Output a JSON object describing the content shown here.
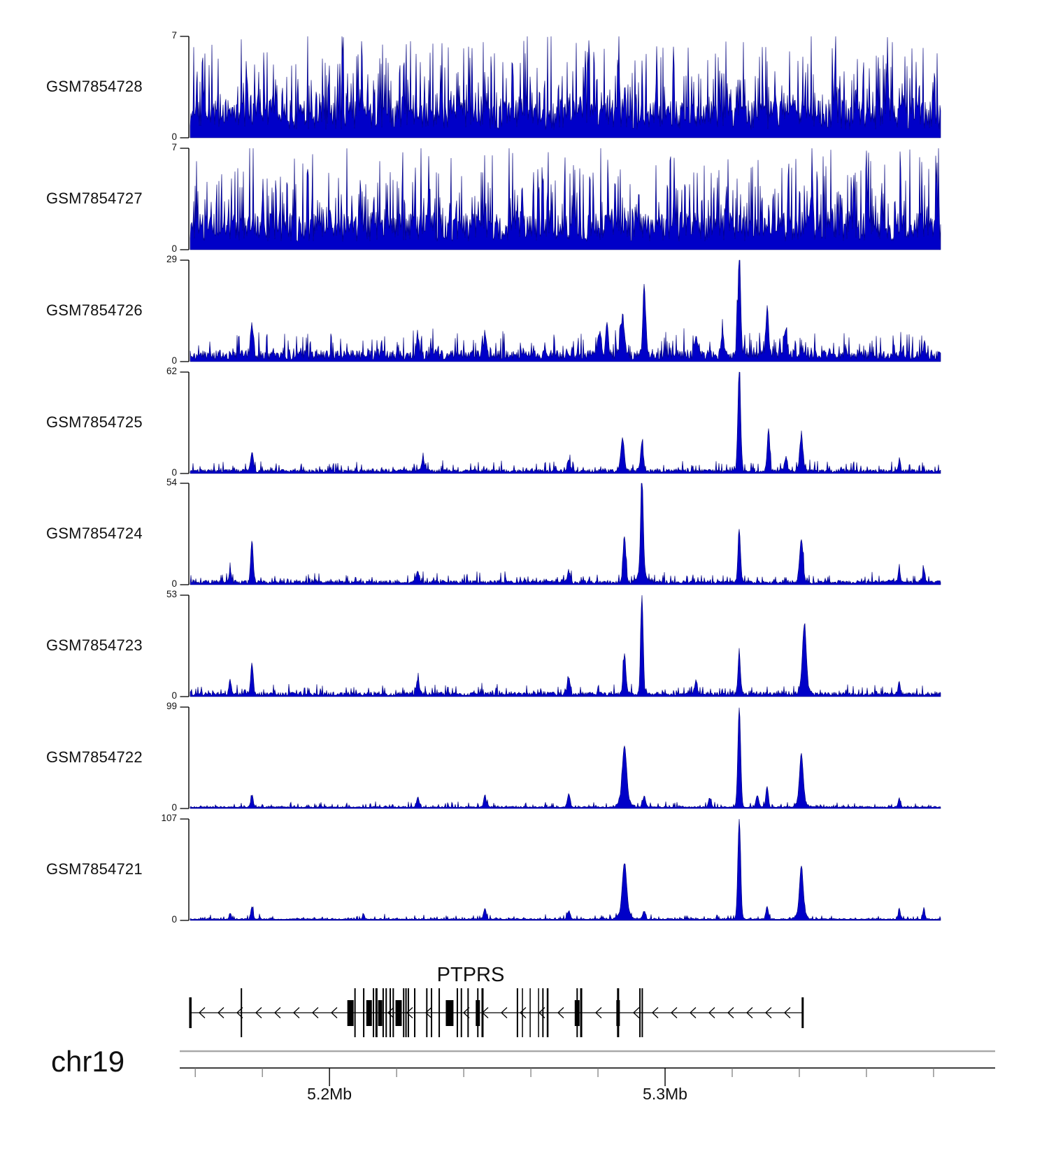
{
  "chart_data": {
    "type": "area",
    "subtype": "genome-browser-coverage-tracks",
    "description": "Eight ChIP-seq/coverage signal tracks (dark blue filled area, dense 1px spikes) over chr19 around the PTPRS gene locus. Peaks are given as [position_mb, height_in_track_units, sigma_px]; background noise is dense small-amplitude spiking synthesized from the noise parameters.",
    "colors": {
      "signal": "#0000C8",
      "signal_edge": "#00007A",
      "axis": "#000000",
      "gene": "#000000",
      "ruler_gray": "#A9A9A9",
      "tick_minor": "#777777",
      "text": "#111111"
    },
    "x_axis": {
      "chromosome": "chr19",
      "unit": "Mb",
      "start_mb": 5.1585,
      "end_mb": 5.3821,
      "minor_ticks_mb": [
        5.16,
        5.18,
        5.22,
        5.24,
        5.26,
        5.28,
        5.32,
        5.34,
        5.36,
        5.38
      ],
      "major_ticks": [
        {
          "mb": 5.2,
          "label": "5.2Mb"
        },
        {
          "mb": 5.3,
          "label": "5.3Mb"
        }
      ]
    },
    "tracks": [
      {
        "name": "GSM7854728",
        "ymax": 7,
        "ymin_label": "0",
        "noise": {
          "seed": 101,
          "base": 0.55,
          "band": 2.1,
          "spike_p": 0.52,
          "spike_amp": 5.2,
          "pow": 1.9
        },
        "peaks": []
      },
      {
        "name": "GSM7854727",
        "ymax": 7,
        "ymin_label": "0",
        "noise": {
          "seed": 202,
          "base": 0.55,
          "band": 2.0,
          "spike_p": 0.5,
          "spike_amp": 5.2,
          "pow": 1.9
        },
        "peaks": []
      },
      {
        "name": "GSM7854726",
        "ymax": 29,
        "ymin_label": "0",
        "noise": {
          "seed": 303,
          "base": 0.5,
          "band": 2.8,
          "spike_p": 0.35,
          "spike_amp": 6.5,
          "pow": 2.2
        },
        "peaks": [
          [
            5.1769,
            9,
            2
          ],
          [
            5.2263,
            6,
            2
          ],
          [
            5.2463,
            6,
            2
          ],
          [
            5.2804,
            7,
            2
          ],
          [
            5.2827,
            8,
            2
          ],
          [
            5.2873,
            11,
            3
          ],
          [
            5.2938,
            20,
            2
          ],
          [
            5.3092,
            6,
            2
          ],
          [
            5.3171,
            6,
            2
          ],
          [
            5.3221,
            28,
            2
          ],
          [
            5.3304,
            13,
            2
          ],
          [
            5.3358,
            8,
            2
          ]
        ]
      },
      {
        "name": "GSM7854725",
        "ymax": 62,
        "ymin_label": "0",
        "noise": {
          "seed": 404,
          "base": 0.45,
          "band": 2.2,
          "spike_p": 0.3,
          "spike_amp": 6.0,
          "pow": 2.4
        },
        "peaks": [
          [
            5.1769,
            11,
            2
          ],
          [
            5.2279,
            8,
            2
          ],
          [
            5.2713,
            7,
            2
          ],
          [
            5.2873,
            20,
            2.5
          ],
          [
            5.2931,
            18,
            2
          ],
          [
            5.3221,
            61,
            2
          ],
          [
            5.3308,
            26,
            1.8
          ],
          [
            5.336,
            8,
            2
          ],
          [
            5.3406,
            20,
            2.5
          ],
          [
            5.3698,
            7,
            1.5
          ]
        ]
      },
      {
        "name": "GSM7854724",
        "ymax": 54,
        "ymin_label": "0",
        "noise": {
          "seed": 505,
          "base": 0.4,
          "band": 2.0,
          "spike_p": 0.3,
          "spike_amp": 5.0,
          "pow": 2.4
        },
        "peaks": [
          [
            5.1704,
            7,
            1.5
          ],
          [
            5.1769,
            23,
            1.8
          ],
          [
            5.2263,
            5,
            2
          ],
          [
            5.2713,
            6,
            2
          ],
          [
            5.2879,
            25,
            2
          ],
          [
            5.2931,
            53,
            1.8
          ],
          [
            5.2931,
            6,
            5
          ],
          [
            5.3221,
            28,
            1.8
          ],
          [
            5.3406,
            22,
            2.5
          ],
          [
            5.3698,
            7,
            1.5
          ],
          [
            5.3771,
            8,
            1.5
          ]
        ]
      },
      {
        "name": "GSM7854723",
        "ymax": 53,
        "ymin_label": "0",
        "noise": {
          "seed": 606,
          "base": 0.4,
          "band": 2.0,
          "spike_p": 0.3,
          "spike_amp": 5.0,
          "pow": 2.4
        },
        "peaks": [
          [
            5.1704,
            7,
            1.5
          ],
          [
            5.1769,
            16,
            1.8
          ],
          [
            5.2263,
            8,
            2
          ],
          [
            5.2713,
            9,
            2
          ],
          [
            5.2879,
            21,
            2
          ],
          [
            5.2931,
            52,
            1.8
          ],
          [
            5.3092,
            7,
            2
          ],
          [
            5.3221,
            21,
            1.8
          ],
          [
            5.3415,
            31,
            2.5
          ],
          [
            5.3415,
            6,
            5
          ],
          [
            5.3698,
            7,
            1.5
          ]
        ]
      },
      {
        "name": "GSM7854722",
        "ymax": 99,
        "ymin_label": "0",
        "noise": {
          "seed": 707,
          "base": 0.45,
          "band": 1.8,
          "spike_p": 0.28,
          "spike_amp": 5.0,
          "pow": 2.4
        },
        "peaks": [
          [
            5.1769,
            12,
            1.8
          ],
          [
            5.2263,
            10,
            1.8
          ],
          [
            5.2463,
            12,
            1.8
          ],
          [
            5.2713,
            13,
            2
          ],
          [
            5.2879,
            52,
            3
          ],
          [
            5.2879,
            8,
            7
          ],
          [
            5.2938,
            11,
            2
          ],
          [
            5.3133,
            9,
            2
          ],
          [
            5.3221,
            98,
            2
          ],
          [
            5.3275,
            11,
            2
          ],
          [
            5.3304,
            20,
            1.8
          ],
          [
            5.3406,
            45,
            2.5
          ],
          [
            5.3406,
            7,
            6
          ],
          [
            5.3698,
            9,
            1.5
          ]
        ]
      },
      {
        "name": "GSM7854721",
        "ymax": 107,
        "ymin_label": "0",
        "noise": {
          "seed": 808,
          "base": 0.45,
          "band": 1.8,
          "spike_p": 0.26,
          "spike_amp": 5.0,
          "pow": 2.4
        },
        "peaks": [
          [
            5.1704,
            7,
            1.5
          ],
          [
            5.1769,
            13,
            1.8
          ],
          [
            5.2102,
            6,
            1.5
          ],
          [
            5.2463,
            12,
            1.8
          ],
          [
            5.2713,
            9,
            2
          ],
          [
            5.2879,
            51,
            3
          ],
          [
            5.2879,
            8,
            7
          ],
          [
            5.2938,
            9,
            2
          ],
          [
            5.3221,
            106,
            2
          ],
          [
            5.3304,
            13,
            1.8
          ],
          [
            5.3406,
            49,
            2.5
          ],
          [
            5.3406,
            8,
            6
          ],
          [
            5.3698,
            11,
            1.5
          ],
          [
            5.3771,
            12,
            1.5
          ]
        ]
      }
    ],
    "gene_track": {
      "gene": {
        "name": "PTPRS",
        "strand": "-",
        "start_mb": 5.1586,
        "end_mb": 5.341
      },
      "exons": [
        [
          5.17375,
          2,
          "tall"
        ],
        [
          5.20625,
          9,
          "box"
        ],
        [
          5.2076,
          2,
          "tall"
        ],
        [
          5.2102,
          2,
          "tall"
        ],
        [
          5.2118,
          8,
          "box"
        ],
        [
          5.2131,
          2,
          "tall"
        ],
        [
          5.214,
          3,
          "tall"
        ],
        [
          5.2151,
          6,
          "box"
        ],
        [
          5.216,
          2,
          "tall"
        ],
        [
          5.2169,
          2,
          "tall"
        ],
        [
          5.2181,
          2,
          "tall"
        ],
        [
          5.219,
          2,
          "tall"
        ],
        [
          5.2206,
          9,
          "box"
        ],
        [
          5.2221,
          2,
          "tall"
        ],
        [
          5.2228,
          2,
          "tall"
        ],
        [
          5.2235,
          2,
          "tall"
        ],
        [
          5.2254,
          2,
          "tall"
        ],
        [
          5.229,
          2,
          "tall"
        ],
        [
          5.2304,
          2,
          "tall"
        ],
        [
          5.2327,
          2,
          "tall"
        ],
        [
          5.2358,
          11,
          "box"
        ],
        [
          5.2381,
          2,
          "tall"
        ],
        [
          5.2393,
          2,
          "tall"
        ],
        [
          5.2413,
          2,
          "tall"
        ],
        [
          5.2442,
          6,
          "box"
        ],
        [
          5.2442,
          2,
          "tall"
        ],
        [
          5.2456,
          3,
          "tall"
        ],
        [
          5.256,
          2,
          "tall"
        ],
        [
          5.2575,
          1.5,
          "tall"
        ],
        [
          5.2598,
          1.5,
          "tall"
        ],
        [
          5.2623,
          1.5,
          "tall"
        ],
        [
          5.2636,
          2,
          "tall"
        ],
        [
          5.265,
          2.5,
          "tall"
        ],
        [
          5.2738,
          7,
          "box"
        ],
        [
          5.2738,
          2,
          "tall"
        ],
        [
          5.275,
          3,
          "tall"
        ],
        [
          5.286,
          5,
          "box"
        ],
        [
          5.286,
          3,
          "tall"
        ],
        [
          5.2925,
          2,
          "tall"
        ],
        [
          5.2932,
          2,
          "tall"
        ]
      ]
    },
    "ruler": {
      "chromosome": "chr19"
    }
  }
}
